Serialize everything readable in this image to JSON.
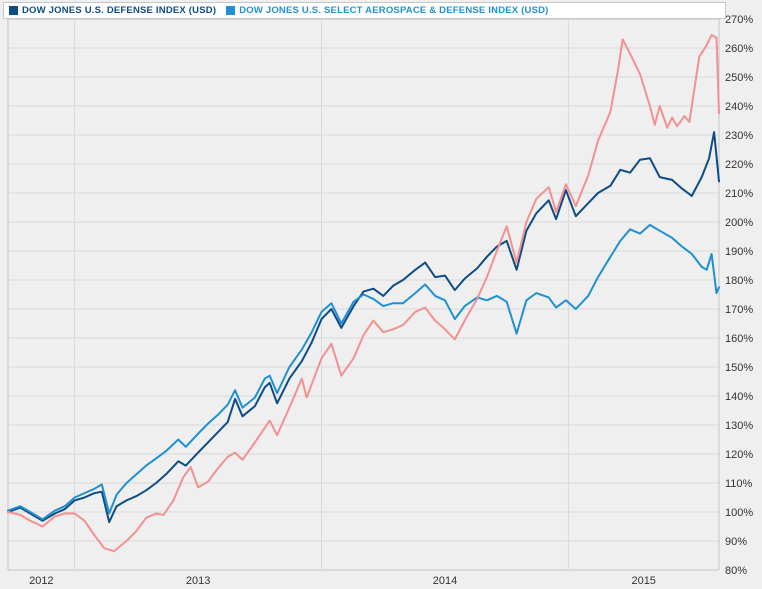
{
  "page": {
    "background": "#efefef"
  },
  "legend": {
    "items": [
      {
        "label": "DOW JONES U.S. DEFENSE INDEX (USD)",
        "color": "#0e4c85"
      },
      {
        "label": "DOW JONES U.S. SELECT AEROSPACE & DEFENSE INDEX (USD)",
        "color": "#1f90d0"
      }
    ]
  },
  "chart_data": {
    "type": "line",
    "title": "",
    "xlabel": "",
    "ylabel": "",
    "grid": true,
    "plot_background": "#efefef",
    "gridline_color": "#d9d9d9",
    "border_color": "#c4c4c4",
    "x_axis": {
      "labels": [
        "2012",
        "2013",
        "2014",
        "2015"
      ],
      "gridline_years": [
        2013,
        2014,
        2015
      ],
      "range": [
        2012.73,
        2015.61
      ]
    },
    "y_axis": {
      "unit": "%",
      "tick_step": 10,
      "range": [
        80,
        270
      ],
      "side": "right"
    },
    "series": [
      {
        "name": "DOW JONES U.S. DEFENSE INDEX (USD)",
        "color": "#0e4c85",
        "legend_visible": true,
        "points": [
          [
            2012.73,
            100
          ],
          [
            2012.78,
            101.5
          ],
          [
            2012.82,
            99.5
          ],
          [
            2012.87,
            97
          ],
          [
            2012.92,
            99.5
          ],
          [
            2012.96,
            101
          ],
          [
            2013.0,
            104
          ],
          [
            2013.04,
            105
          ],
          [
            2013.08,
            106.5
          ],
          [
            2013.11,
            107
          ],
          [
            2013.14,
            96.5
          ],
          [
            2013.17,
            102
          ],
          [
            2013.21,
            104
          ],
          [
            2013.25,
            105.5
          ],
          [
            2013.29,
            107.5
          ],
          [
            2013.33,
            110
          ],
          [
            2013.37,
            113
          ],
          [
            2013.42,
            117.5
          ],
          [
            2013.45,
            116
          ],
          [
            2013.5,
            120.5
          ],
          [
            2013.54,
            124
          ],
          [
            2013.58,
            127.5
          ],
          [
            2013.62,
            131
          ],
          [
            2013.65,
            139
          ],
          [
            2013.68,
            133
          ],
          [
            2013.73,
            136.5
          ],
          [
            2013.77,
            143
          ],
          [
            2013.79,
            144.5
          ],
          [
            2013.82,
            137.5
          ],
          [
            2013.87,
            146
          ],
          [
            2013.92,
            152
          ],
          [
            2013.96,
            158.5
          ],
          [
            2014.0,
            166.5
          ],
          [
            2014.04,
            170
          ],
          [
            2014.08,
            163.5
          ],
          [
            2014.13,
            171
          ],
          [
            2014.17,
            176
          ],
          [
            2014.21,
            177
          ],
          [
            2014.25,
            174.5
          ],
          [
            2014.29,
            178
          ],
          [
            2014.33,
            180
          ],
          [
            2014.38,
            183.5
          ],
          [
            2014.42,
            186
          ],
          [
            2014.46,
            181
          ],
          [
            2014.5,
            181.5
          ],
          [
            2014.54,
            176.5
          ],
          [
            2014.58,
            180.5
          ],
          [
            2014.63,
            184
          ],
          [
            2014.67,
            188
          ],
          [
            2014.71,
            191.5
          ],
          [
            2014.75,
            193.5
          ],
          [
            2014.79,
            183.5
          ],
          [
            2014.83,
            197
          ],
          [
            2014.87,
            203
          ],
          [
            2014.92,
            207.5
          ],
          [
            2014.95,
            201
          ],
          [
            2014.99,
            211
          ],
          [
            2015.03,
            202
          ],
          [
            2015.08,
            206.5
          ],
          [
            2015.12,
            210
          ],
          [
            2015.17,
            212.5
          ],
          [
            2015.21,
            218
          ],
          [
            2015.25,
            217
          ],
          [
            2015.29,
            221.5
          ],
          [
            2015.33,
            222
          ],
          [
            2015.37,
            215.5
          ],
          [
            2015.42,
            214.5
          ],
          [
            2015.46,
            211.5
          ],
          [
            2015.5,
            209
          ],
          [
            2015.54,
            215.5
          ],
          [
            2015.57,
            222
          ],
          [
            2015.59,
            231
          ],
          [
            2015.61,
            214
          ]
        ]
      },
      {
        "name": "DOW JONES U.S. SELECT AEROSPACE & DEFENSE INDEX (USD)",
        "color": "#1f90d0",
        "legend_visible": true,
        "points": [
          [
            2012.73,
            100.5
          ],
          [
            2012.78,
            102
          ],
          [
            2012.82,
            100
          ],
          [
            2012.87,
            97.5
          ],
          [
            2012.92,
            100.5
          ],
          [
            2012.96,
            102
          ],
          [
            2013.0,
            105
          ],
          [
            2013.04,
            106.5
          ],
          [
            2013.08,
            108
          ],
          [
            2013.11,
            109.5
          ],
          [
            2013.14,
            99.5
          ],
          [
            2013.17,
            106
          ],
          [
            2013.21,
            110
          ],
          [
            2013.25,
            113
          ],
          [
            2013.29,
            116
          ],
          [
            2013.33,
            118.5
          ],
          [
            2013.37,
            121
          ],
          [
            2013.42,
            125
          ],
          [
            2013.45,
            122.5
          ],
          [
            2013.5,
            127
          ],
          [
            2013.54,
            130.5
          ],
          [
            2013.58,
            133.5
          ],
          [
            2013.62,
            137
          ],
          [
            2013.65,
            142
          ],
          [
            2013.68,
            136
          ],
          [
            2013.73,
            139.5
          ],
          [
            2013.77,
            146
          ],
          [
            2013.79,
            147
          ],
          [
            2013.82,
            141
          ],
          [
            2013.87,
            150
          ],
          [
            2013.92,
            156
          ],
          [
            2013.96,
            162
          ],
          [
            2014.0,
            169
          ],
          [
            2014.04,
            172
          ],
          [
            2014.08,
            165
          ],
          [
            2014.13,
            172.5
          ],
          [
            2014.17,
            175
          ],
          [
            2014.21,
            173.5
          ],
          [
            2014.25,
            171
          ],
          [
            2014.29,
            172
          ],
          [
            2014.33,
            172
          ],
          [
            2014.38,
            175.5
          ],
          [
            2014.42,
            178.5
          ],
          [
            2014.46,
            174.5
          ],
          [
            2014.5,
            173
          ],
          [
            2014.54,
            166.5
          ],
          [
            2014.58,
            171
          ],
          [
            2014.63,
            174
          ],
          [
            2014.67,
            173
          ],
          [
            2014.71,
            174.5
          ],
          [
            2014.75,
            172.5
          ],
          [
            2014.79,
            161.5
          ],
          [
            2014.83,
            173
          ],
          [
            2014.87,
            175.5
          ],
          [
            2014.92,
            174
          ],
          [
            2014.95,
            170.5
          ],
          [
            2014.99,
            173
          ],
          [
            2015.03,
            170
          ],
          [
            2015.08,
            174.5
          ],
          [
            2015.12,
            181
          ],
          [
            2015.17,
            188
          ],
          [
            2015.21,
            193.5
          ],
          [
            2015.25,
            197.5
          ],
          [
            2015.29,
            196
          ],
          [
            2015.33,
            199
          ],
          [
            2015.37,
            197
          ],
          [
            2015.42,
            194.5
          ],
          [
            2015.46,
            191.5
          ],
          [
            2015.5,
            189
          ],
          [
            2015.54,
            184.5
          ],
          [
            2015.56,
            183.5
          ],
          [
            2015.58,
            189
          ],
          [
            2015.6,
            175.5
          ],
          [
            2015.61,
            177.5
          ]
        ]
      },
      {
        "name": "",
        "color": "#f39090",
        "legend_visible": false,
        "points": [
          [
            2012.73,
            100
          ],
          [
            2012.78,
            99
          ],
          [
            2012.82,
            97
          ],
          [
            2012.87,
            95
          ],
          [
            2012.92,
            98.5
          ],
          [
            2012.96,
            99.5
          ],
          [
            2013.0,
            99.5
          ],
          [
            2013.04,
            97
          ],
          [
            2013.08,
            92
          ],
          [
            2013.12,
            87.5
          ],
          [
            2013.16,
            86.5
          ],
          [
            2013.21,
            90
          ],
          [
            2013.25,
            93.5
          ],
          [
            2013.29,
            98
          ],
          [
            2013.33,
            99.5
          ],
          [
            2013.36,
            99
          ],
          [
            2013.4,
            104
          ],
          [
            2013.44,
            112
          ],
          [
            2013.47,
            115.5
          ],
          [
            2013.5,
            108.5
          ],
          [
            2013.54,
            110.5
          ],
          [
            2013.58,
            115
          ],
          [
            2013.62,
            119
          ],
          [
            2013.65,
            120.5
          ],
          [
            2013.68,
            118
          ],
          [
            2013.73,
            124
          ],
          [
            2013.79,
            131.5
          ],
          [
            2013.82,
            126.5
          ],
          [
            2013.87,
            136
          ],
          [
            2013.92,
            146
          ],
          [
            2013.94,
            139.5
          ],
          [
            2014.0,
            153
          ],
          [
            2014.04,
            158
          ],
          [
            2014.08,
            147
          ],
          [
            2014.13,
            153
          ],
          [
            2014.17,
            161
          ],
          [
            2014.21,
            166
          ],
          [
            2014.25,
            162
          ],
          [
            2014.29,
            163
          ],
          [
            2014.33,
            164.5
          ],
          [
            2014.38,
            169
          ],
          [
            2014.42,
            170.5
          ],
          [
            2014.46,
            166
          ],
          [
            2014.5,
            163
          ],
          [
            2014.54,
            159.5
          ],
          [
            2014.58,
            166
          ],
          [
            2014.63,
            173.5
          ],
          [
            2014.67,
            181
          ],
          [
            2014.71,
            190
          ],
          [
            2014.75,
            198.5
          ],
          [
            2014.79,
            186
          ],
          [
            2014.83,
            200
          ],
          [
            2014.87,
            208
          ],
          [
            2014.92,
            212
          ],
          [
            2014.95,
            203.5
          ],
          [
            2014.99,
            213
          ],
          [
            2015.03,
            205.5
          ],
          [
            2015.08,
            216
          ],
          [
            2015.12,
            228
          ],
          [
            2015.17,
            238
          ],
          [
            2015.2,
            252
          ],
          [
            2015.22,
            263
          ],
          [
            2015.25,
            258
          ],
          [
            2015.29,
            251
          ],
          [
            2015.33,
            240
          ],
          [
            2015.35,
            233.5
          ],
          [
            2015.37,
            240
          ],
          [
            2015.4,
            232.5
          ],
          [
            2015.42,
            236
          ],
          [
            2015.44,
            233
          ],
          [
            2015.47,
            236.5
          ],
          [
            2015.49,
            234.5
          ],
          [
            2015.53,
            257
          ],
          [
            2015.56,
            261
          ],
          [
            2015.58,
            264.5
          ],
          [
            2015.6,
            263.5
          ],
          [
            2015.61,
            237.5
          ]
        ]
      }
    ]
  }
}
